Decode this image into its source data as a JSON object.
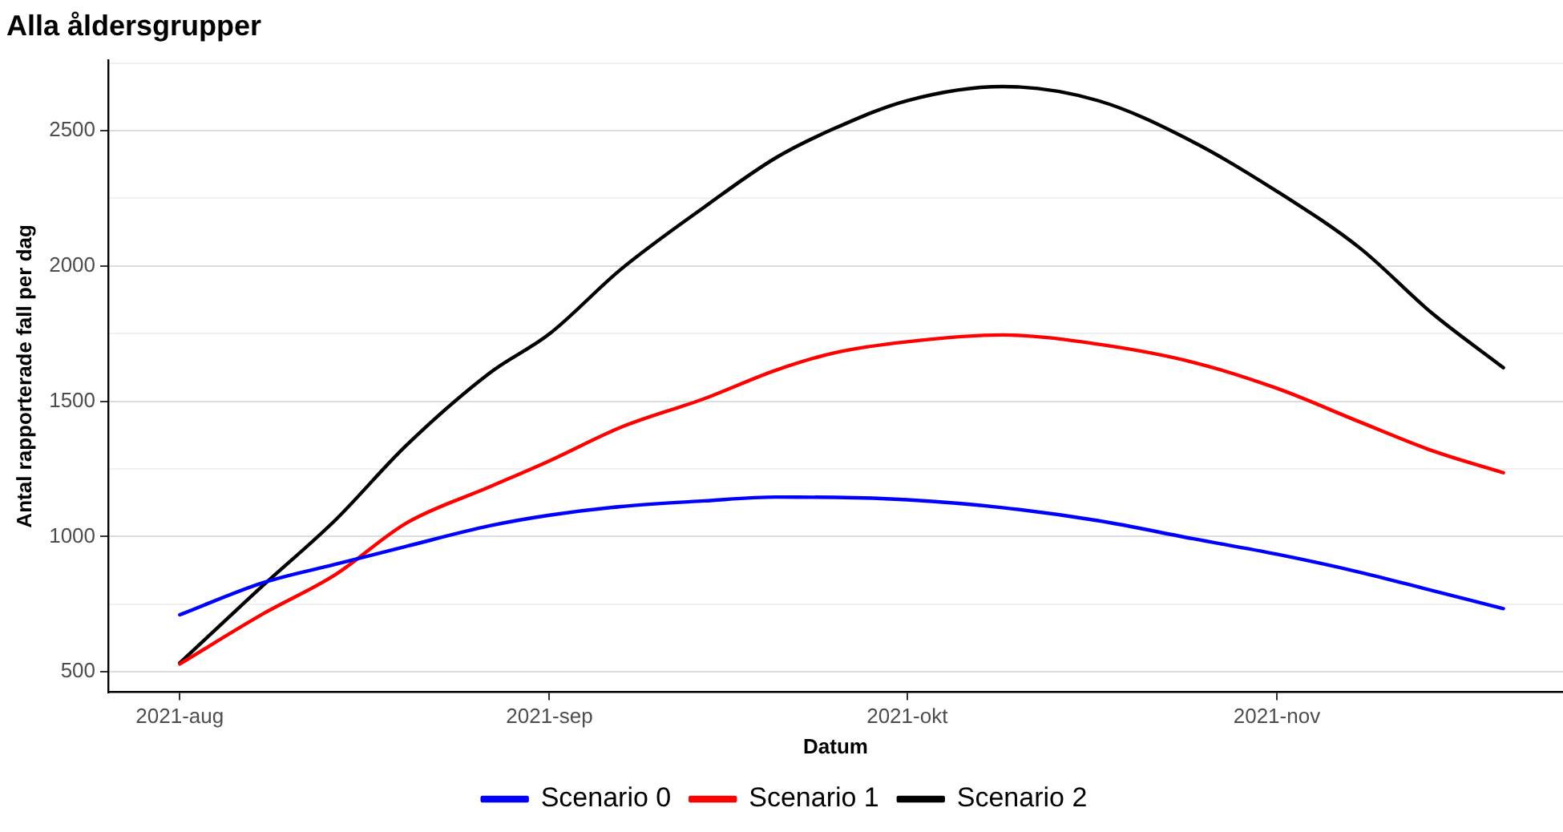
{
  "chart_data": {
    "type": "line",
    "title": "Alla åldersgrupper",
    "xlabel": "Datum",
    "ylabel": "Antal rapporterade fall per dag",
    "x": [
      "2021-08-01",
      "2021-08-08",
      "2021-08-14",
      "2021-08-20",
      "2021-08-27",
      "2021-09-01",
      "2021-09-07",
      "2021-09-14",
      "2021-09-20",
      "2021-09-25",
      "2021-10-01",
      "2021-10-09",
      "2021-10-17",
      "2021-10-25",
      "2021-11-01",
      "2021-11-08",
      "2021-11-14",
      "2021-11-20"
    ],
    "series": [
      {
        "name": "Scenario 0",
        "color": "#0000ff",
        "values": [
          711,
          830,
          897,
          964,
          1040,
          1079,
          1111,
          1132,
          1146,
          1145,
          1136,
          1107,
          1059,
          992,
          935,
          868,
          801,
          734
        ]
      },
      {
        "name": "Scenario 1",
        "color": "#ff0000",
        "values": [
          529,
          715,
          858,
          1050,
          1184,
          1280,
          1404,
          1510,
          1615,
          1680,
          1720,
          1745,
          1711,
          1644,
          1548,
          1423,
          1318,
          1236
        ]
      },
      {
        "name": "Scenario 2",
        "color": "#000000",
        "values": [
          533,
          820,
          1059,
          1337,
          1605,
          1749,
          1988,
          2218,
          2400,
          2510,
          2611,
          2663,
          2611,
          2458,
          2276,
          2065,
          1826,
          1624
        ]
      }
    ],
    "xlim": [
      "2021-07-26",
      "2021-11-25"
    ],
    "xticks": [
      {
        "value": "2021-08-01",
        "label": "2021-aug"
      },
      {
        "value": "2021-09-01",
        "label": "2021-sep"
      },
      {
        "value": "2021-10-01",
        "label": "2021-okt"
      },
      {
        "value": "2021-11-01",
        "label": "2021-nov"
      }
    ],
    "ylim": [
      425,
      2760
    ],
    "yticks": [
      500,
      {
        "value": 750,
        "label": null
      },
      1000,
      {
        "value": 1250,
        "label": null
      },
      1500,
      {
        "value": 1750,
        "label": null
      },
      2000,
      {
        "value": 2250,
        "label": null
      },
      2500,
      {
        "value": 2750,
        "label": null
      }
    ],
    "grid": "y",
    "legend": "bottom",
    "marker": "none",
    "line_style": "solid"
  }
}
